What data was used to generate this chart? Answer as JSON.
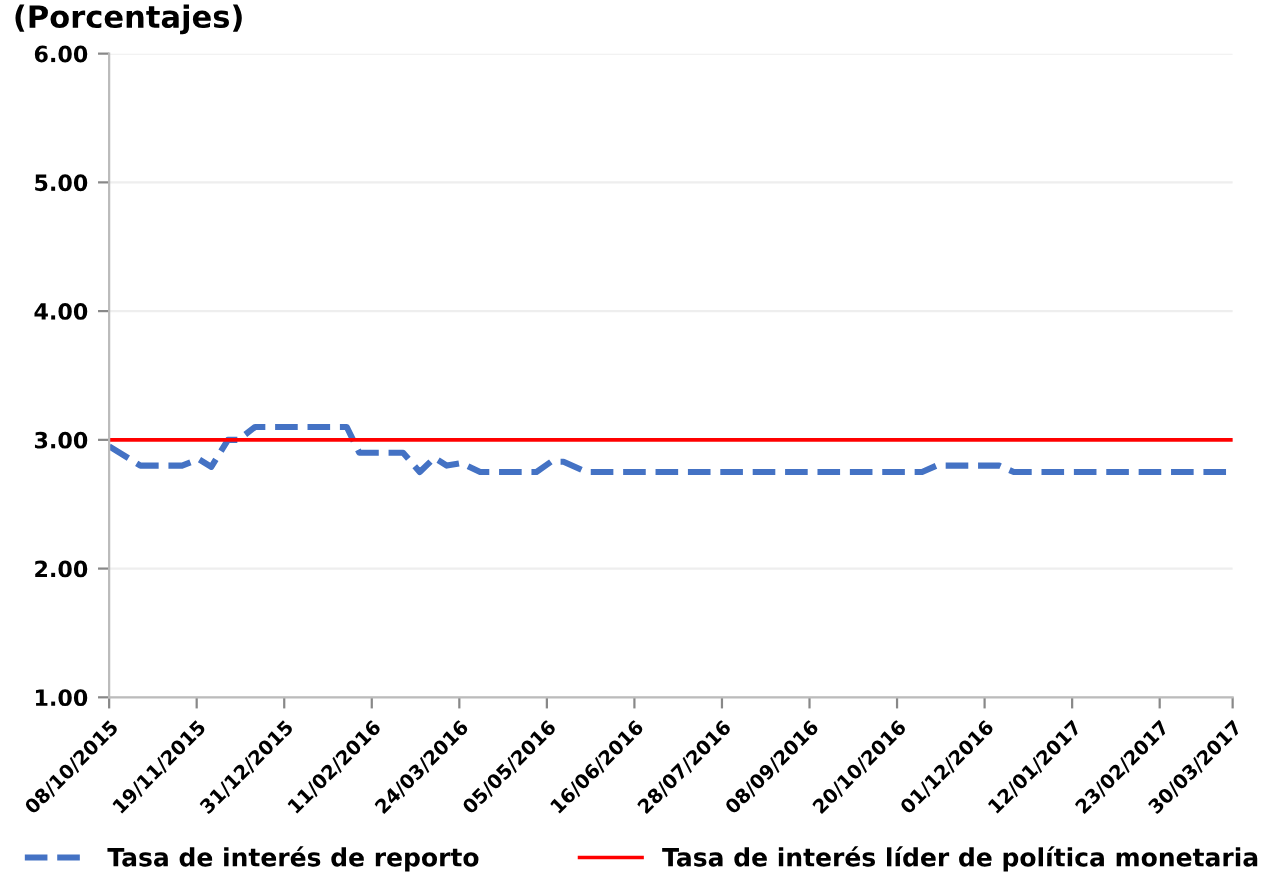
{
  "chart_data": {
    "type": "line",
    "title": "(Porcentajes)",
    "xlim": [
      "2015-10-08",
      "2017-03-30"
    ],
    "xticks": [
      {
        "value": "2015-10-08",
        "label": "08/10/2015"
      },
      {
        "value": "2015-11-19",
        "label": "19/11/2015"
      },
      {
        "value": "2015-12-31",
        "label": "31/12/2015"
      },
      {
        "value": "2016-02-11",
        "label": "11/02/2016"
      },
      {
        "value": "2016-03-24",
        "label": "24/03/2016"
      },
      {
        "value": "2016-05-05",
        "label": "05/05/2016"
      },
      {
        "value": "2016-06-16",
        "label": "16/06/2016"
      },
      {
        "value": "2016-07-28",
        "label": "28/07/2016"
      },
      {
        "value": "2016-09-08",
        "label": "08/09/2016"
      },
      {
        "value": "2016-10-20",
        "label": "20/10/2016"
      },
      {
        "value": "2016-12-01",
        "label": "01/12/2016"
      },
      {
        "value": "2017-01-12",
        "label": "12/01/2017"
      },
      {
        "value": "2017-02-23",
        "label": "23/02/2017"
      },
      {
        "value": "2017-03-30",
        "label": "30/03/2017"
      }
    ],
    "ylim": [
      1,
      6
    ],
    "yticks": [
      {
        "value": 1,
        "label": "1.00"
      },
      {
        "value": 2,
        "label": "2.00"
      },
      {
        "value": 3,
        "label": "3.00"
      },
      {
        "value": 4,
        "label": "4.00"
      },
      {
        "value": 5,
        "label": "5.00"
      },
      {
        "value": 6,
        "label": "6.00"
      }
    ],
    "grid": "y",
    "legend": "bottom",
    "marker": "none",
    "series": [
      {
        "name": "Tasa de interés de reporto",
        "color": "#4472c4",
        "line_style": "dashed",
        "x": [
          "2015-10-08",
          "2015-10-23",
          "2015-11-12",
          "2015-11-20",
          "2015-11-26",
          "2015-12-04",
          "2015-12-09",
          "2015-12-17",
          "2016-01-30",
          "2016-02-05",
          "2016-02-26",
          "2016-03-05",
          "2016-03-12",
          "2016-03-18",
          "2016-03-25",
          "2016-04-03",
          "2016-04-30",
          "2016-05-07",
          "2016-05-13",
          "2016-05-24",
          "2016-11-01",
          "2016-11-08",
          "2016-12-08",
          "2016-12-15",
          "2017-03-30"
        ],
        "values": [
          2.95,
          2.8,
          2.8,
          2.85,
          2.79,
          3.0,
          3.0,
          3.1,
          3.1,
          2.9,
          2.9,
          2.75,
          2.86,
          2.8,
          2.82,
          2.75,
          2.75,
          2.83,
          2.83,
          2.75,
          2.75,
          2.8,
          2.8,
          2.75,
          2.75
        ]
      },
      {
        "name": "Tasa de interés líder de política monetaria",
        "color": "#ff0000",
        "line_style": "solid",
        "x": [
          "2015-10-08",
          "2017-03-30"
        ],
        "values": [
          3.0,
          3.0
        ]
      }
    ]
  }
}
